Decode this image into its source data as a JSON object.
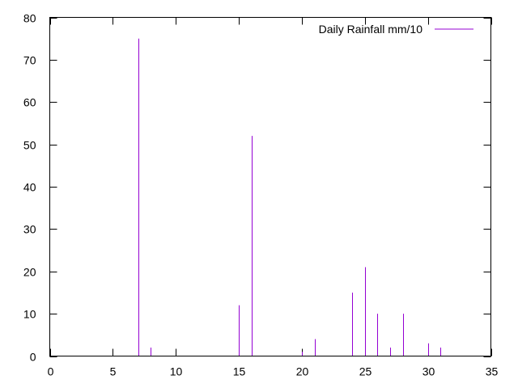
{
  "chart_data": {
    "type": "bar",
    "style": "impulses",
    "title": "",
    "xlabel": "",
    "ylabel": "",
    "xlim": [
      0,
      35
    ],
    "ylim": [
      0,
      80
    ],
    "xticks": [
      0,
      5,
      10,
      15,
      20,
      25,
      30,
      35
    ],
    "yticks": [
      0,
      10,
      20,
      30,
      40,
      50,
      60,
      70,
      80
    ],
    "grid": false,
    "legend": {
      "position": "top-right"
    },
    "series": [
      {
        "name": "Daily Rainfall mm/10",
        "color": "#9400d3",
        "x": [
          7,
          8,
          15,
          16,
          20,
          21,
          24,
          25,
          26,
          27,
          28,
          30,
          31
        ],
        "y": [
          75,
          2,
          12,
          52,
          1,
          4,
          15,
          21,
          10,
          2,
          10,
          3,
          2
        ]
      }
    ]
  }
}
